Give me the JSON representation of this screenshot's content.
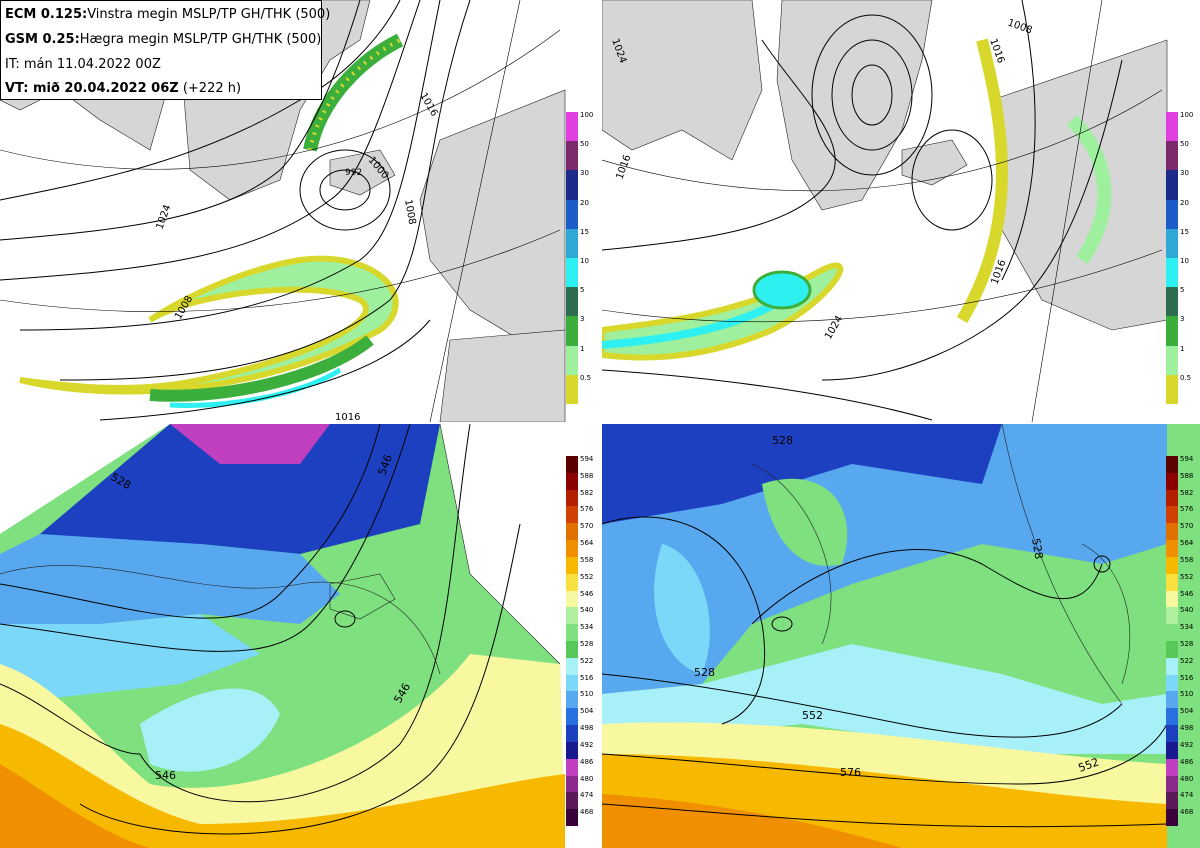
{
  "header": {
    "line1_bold": "ECM 0.125:",
    "line1_rest": "Vinstra megin MSLP/TP GH/THK (500)",
    "line2_bold": "GSM 0.25:",
    "line2_rest": "Hægra megin MSLP/TP GH/THK (500)",
    "line3": "IT: mán 11.04.2022 00Z",
    "line4_bold": "VT: mið 20.04.2022 06Z",
    "line4_rest": "(+222 h)"
  },
  "colors": {
    "land": "#d6d6d6",
    "sea": "#ffffff"
  },
  "precip_scale": {
    "ticks": [
      "100",
      "50",
      "30",
      "20",
      "15",
      "10",
      "5",
      "3",
      "1",
      "0.5"
    ],
    "colors": [
      "#e040e0",
      "#7b2a6e",
      "#1c2a8a",
      "#1c5bc8",
      "#2fa8d8",
      "#2ff0f0",
      "#2e6e50",
      "#3cae3c",
      "#9ef09e",
      "#d8d82c"
    ]
  },
  "thickness_scale": {
    "ticks": [
      "594",
      "588",
      "582",
      "576",
      "570",
      "564",
      "558",
      "552",
      "546",
      "540",
      "534",
      "528",
      "522",
      "516",
      "510",
      "504",
      "498",
      "492",
      "486",
      "480",
      "474",
      "468"
    ],
    "colors": [
      "#5a0000",
      "#8b0000",
      "#b22000",
      "#d04000",
      "#e07000",
      "#f09000",
      "#f7b800",
      "#f8e040",
      "#f8f8a0",
      "#b0f0a0",
      "#7ee07e",
      "#58c858",
      "#a8f0f8",
      "#7cd8f8",
      "#58a8f0",
      "#2a70e0",
      "#1c40c0",
      "#1a1a90",
      "#c040c0",
      "#8a2a8a",
      "#5a1a5a",
      "#3a003a"
    ]
  },
  "labels": {
    "ecm_mslp": [
      "1024",
      "1016",
      "1000",
      "1008",
      "1016",
      "992",
      "1008"
    ],
    "gsm_mslp": [
      "1024",
      "1016",
      "1008",
      "1016",
      "1024",
      "1016"
    ],
    "ecm_gh": [
      "546",
      "546",
      "528",
      "546"
    ],
    "gsm_gh": [
      "528",
      "528",
      "552",
      "552",
      "576",
      "528"
    ]
  }
}
